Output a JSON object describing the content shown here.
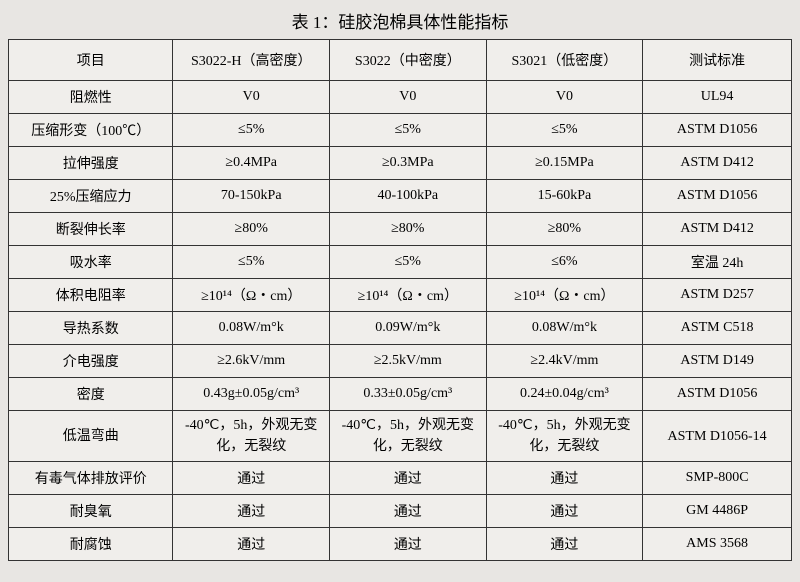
{
  "title": "表 1：硅胶泡棉具体性能指标",
  "columns": {
    "item": "项目",
    "c1": "S3022-H（高密度）",
    "c2": "S3022（中密度）",
    "c3": "S3021（低密度）",
    "std": "测试标准"
  },
  "rows": [
    {
      "item": "阻燃性",
      "c1": "V0",
      "c2": "V0",
      "c3": "V0",
      "std": "UL94"
    },
    {
      "item": "压缩形变（100℃）",
      "c1": "≤5%",
      "c2": "≤5%",
      "c3": "≤5%",
      "std": "ASTM D1056"
    },
    {
      "item": "拉伸强度",
      "c1": "≥0.4MPa",
      "c2": "≥0.3MPa",
      "c3": "≥0.15MPa",
      "std": "ASTM D412"
    },
    {
      "item": "25%压缩应力",
      "c1": "70-150kPa",
      "c2": "40-100kPa",
      "c3": "15-60kPa",
      "std": "ASTM D1056"
    },
    {
      "item": "断裂伸长率",
      "c1": "≥80%",
      "c2": "≥80%",
      "c3": "≥80%",
      "std": "ASTM D412"
    },
    {
      "item": "吸水率",
      "c1": "≤5%",
      "c2": "≤5%",
      "c3": "≤6%",
      "std": "室温 24h"
    },
    {
      "item": "体积电阻率",
      "c1": "≥10¹⁴（Ω・cm）",
      "c2": "≥10¹⁴（Ω・cm）",
      "c3": "≥10¹⁴（Ω・cm）",
      "std": "ASTM D257"
    },
    {
      "item": "导热系数",
      "c1": "0.08W/m°k",
      "c2": "0.09W/m°k",
      "c3": "0.08W/m°k",
      "std": "ASTM C518"
    },
    {
      "item": "介电强度",
      "c1": "≥2.6kV/mm",
      "c2": "≥2.5kV/mm",
      "c3": "≥2.4kV/mm",
      "std": "ASTM D149"
    },
    {
      "item": "密度",
      "c1": "0.43g±0.05g/cm³",
      "c2": "0.33±0.05g/cm³",
      "c3": "0.24±0.04g/cm³",
      "std": "ASTM D1056"
    },
    {
      "item": "低温弯曲",
      "c1": "-40℃，5h，外观无变化，无裂纹",
      "c2": "-40℃，5h，外观无变化，无裂纹",
      "c3": "-40℃，5h，外观无变化，无裂纹",
      "std": "ASTM D1056-14",
      "tall": true
    },
    {
      "item": "有毒气体排放评价",
      "c1": "通过",
      "c2": "通过",
      "c3": "通过",
      "std": "SMP-800C"
    },
    {
      "item": "耐臭氧",
      "c1": "通过",
      "c2": "通过",
      "c3": "通过",
      "std": "GM 4486P"
    },
    {
      "item": "耐腐蚀",
      "c1": "通过",
      "c2": "通过",
      "c3": "通过",
      "std": "AMS 3568"
    }
  ],
  "styling": {
    "background_color": "#e8e6e3",
    "table_background": "#f0eeeb",
    "border_color": "#333333",
    "text_color": "#000000",
    "font_family": "SimSun/宋体 serif",
    "title_fontsize": 17,
    "cell_fontsize": 14,
    "column_widths_pct": [
      21,
      20,
      20,
      20,
      19
    ]
  }
}
